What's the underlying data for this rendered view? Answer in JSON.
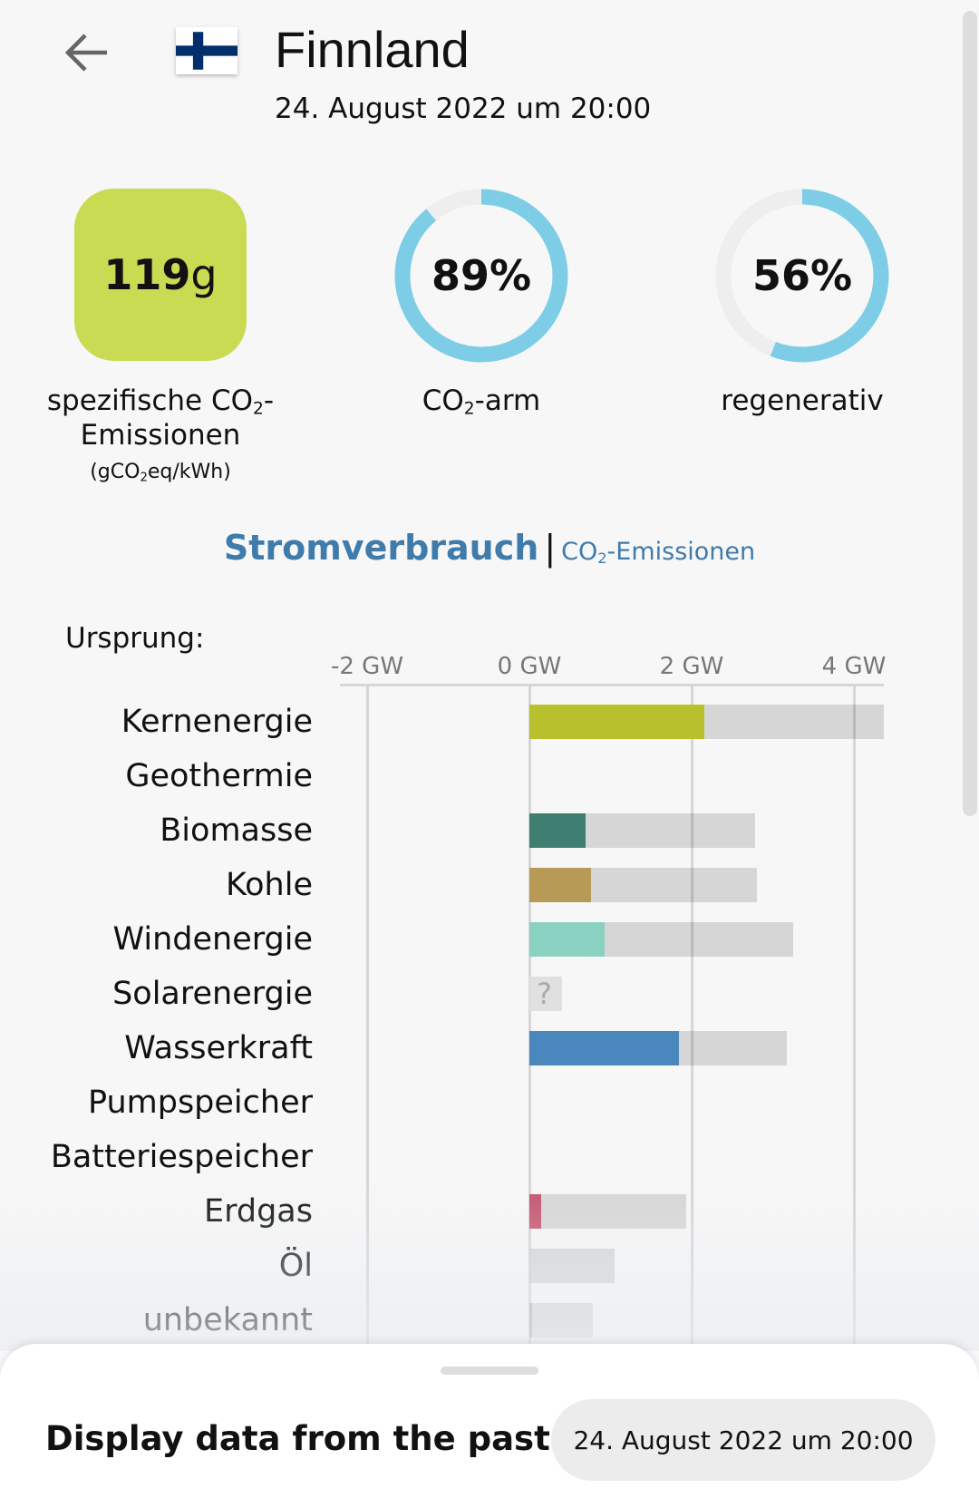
{
  "header": {
    "title": "Finnland",
    "date": "24. August 2022 um 20:00",
    "flag_icon": "finland-flag"
  },
  "stats": {
    "intensity": {
      "value": "119",
      "unit": "g",
      "label_a": "spezifische CO",
      "label_b": "-",
      "label_c": "Emissionen",
      "unit_label_a": "(gCO",
      "unit_label_b": "eq/kWh)",
      "color": "#c9db52"
    },
    "low_carbon": {
      "value": "89%",
      "fraction": 0.89,
      "label_a": "CO",
      "label_b": "-arm"
    },
    "renewable": {
      "value": "56%",
      "fraction": 0.56,
      "label": "regenerativ"
    },
    "ring_color": "#7ecde6",
    "ring_track": "#eeeeee"
  },
  "tabs": {
    "active": "Stromverbrauch",
    "sep": "|",
    "other_a": "CO",
    "other_b": "-Emissionen"
  },
  "sub2": "2",
  "chart_data": {
    "type": "bar",
    "title": "Ursprung:",
    "ticks": [
      "-2 GW",
      "0 GW",
      "2 GW",
      "4 GW"
    ],
    "tick_values": [
      -2,
      0,
      2,
      4
    ],
    "xlim": [
      -2.2,
      4.4
    ],
    "unit": "GW",
    "categories": [
      "Kernenergie",
      "Geothermie",
      "Biomasse",
      "Kohle",
      "Windenergie",
      "Solarenergie",
      "Wasserkraft",
      "Pumpspeicher",
      "Batteriespeicher",
      "Erdgas",
      "Öl",
      "unbekannt"
    ],
    "values": [
      2.16,
      null,
      0.69,
      0.76,
      0.93,
      null,
      1.84,
      null,
      null,
      0.15,
      0,
      0.03
    ],
    "capacity": [
      4.37,
      null,
      2.78,
      2.8,
      3.25,
      null,
      3.17,
      null,
      null,
      1.93,
      1.05,
      0.78
    ],
    "unknown_marker": {
      "category": "Solarenergie",
      "label": "?",
      "extent": 0.4
    },
    "colors": [
      "#b8c02d",
      null,
      "#3f7f72",
      "#b69a55",
      "#8bd1c2",
      null,
      "#4a87bd",
      null,
      null,
      "#c4526e",
      "#cccccc",
      "#aaaaaa"
    ],
    "capacity_color": "#dddddd"
  },
  "bottom": {
    "label": "Display data from the past",
    "date": "24. August 2022 um 20:00"
  }
}
